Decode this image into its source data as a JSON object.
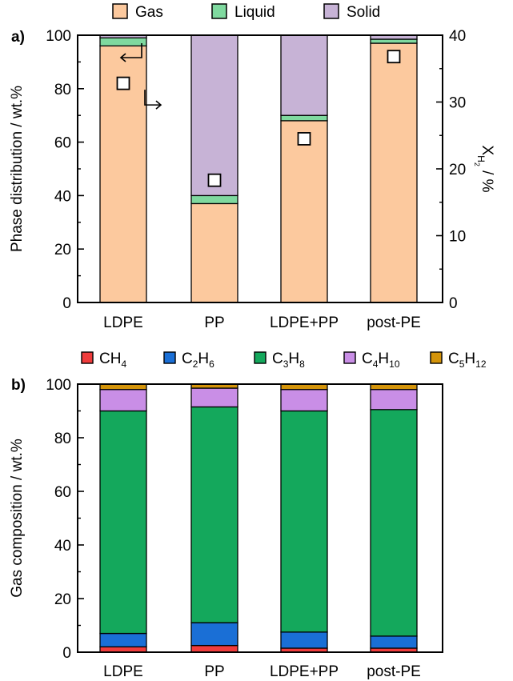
{
  "chart_data": [
    {
      "type": "bar",
      "stacked": true,
      "panel_label": "a)",
      "categories": [
        "LDPE",
        "PP",
        "LDPE+PP",
        "post-PE"
      ],
      "series": [
        {
          "name": "Gas",
          "values": [
            96,
            37,
            68,
            97
          ],
          "color": "#fcc99e"
        },
        {
          "name": "Liquid",
          "values": [
            3,
            3,
            2,
            1.5
          ],
          "color": "#7fd99f"
        },
        {
          "name": "Solid",
          "values": [
            1,
            60,
            30,
            1.5
          ],
          "color": "#c7b3d6"
        }
      ],
      "ylabel": "Phase distribution / wt.%",
      "ylim": [
        0,
        100
      ],
      "yticks": [
        "0",
        "20",
        "40",
        "60",
        "80",
        "100"
      ],
      "secondary_axis": {
        "label_main": "X",
        "label_sub": "H",
        "label_subsub": "2",
        "label_unit": " / %",
        "ylim": [
          0,
          40
        ],
        "yticks": [
          "0",
          "10",
          "20",
          "30",
          "40"
        ],
        "marker": "open-square",
        "values": [
          32.8,
          18.3,
          24.5,
          36.8
        ]
      },
      "legend_position": "top",
      "grid": false
    },
    {
      "type": "bar",
      "stacked": true,
      "panel_label": "b)",
      "categories": [
        "LDPE",
        "PP",
        "LDPE+PP",
        "post-PE"
      ],
      "series": [
        {
          "name": "CH4",
          "label_parts": [
            [
              "CH",
              false
            ],
            [
              "4",
              true
            ]
          ],
          "values": [
            2,
            2.5,
            1.5,
            1.5
          ],
          "color": "#f03c3c"
        },
        {
          "name": "C2H6",
          "label_parts": [
            [
              "C",
              false
            ],
            [
              "2",
              true
            ],
            [
              "H",
              false
            ],
            [
              "6",
              true
            ]
          ],
          "values": [
            5,
            8.5,
            6,
            4.5
          ],
          "color": "#1a6fd6"
        },
        {
          "name": "C3H8",
          "label_parts": [
            [
              "C",
              false
            ],
            [
              "3",
              true
            ],
            [
              "H",
              false
            ],
            [
              "8",
              true
            ]
          ],
          "values": [
            83,
            80.5,
            82.5,
            84.5
          ],
          "color": "#14a85c"
        },
        {
          "name": "C4H10",
          "label_parts": [
            [
              "C",
              false
            ],
            [
              "4",
              true
            ],
            [
              "H",
              false
            ],
            [
              "10",
              true
            ]
          ],
          "values": [
            8,
            7,
            8,
            7.5
          ],
          "color": "#c98ee6"
        },
        {
          "name": "C5H12",
          "label_parts": [
            [
              "C",
              false
            ],
            [
              "5",
              true
            ],
            [
              "H",
              false
            ],
            [
              "12",
              true
            ]
          ],
          "values": [
            2,
            1.5,
            2,
            2
          ],
          "color": "#d4940a"
        }
      ],
      "ylabel": "Gas composition / wt.%",
      "ylim": [
        0,
        100
      ],
      "yticks": [
        "0",
        "20",
        "40",
        "60",
        "80",
        "100"
      ],
      "legend_position": "top",
      "grid": false
    }
  ]
}
